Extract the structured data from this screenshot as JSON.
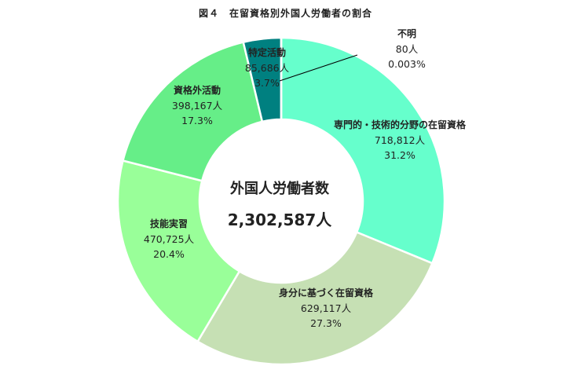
{
  "chart_data": {
    "type": "pie",
    "title": "図４　在留資格別外国人労働者の割合",
    "center": {
      "title": "外国人労働者数",
      "total": "2,302,587人"
    },
    "unit": "人",
    "slices": [
      {
        "label": "専門的・技術的分野の在留資格",
        "value": 718812,
        "value_label": "718,812人",
        "percent": 31.2,
        "percent_label": "31.2%",
        "color": "#66ffcc"
      },
      {
        "label": "身分に基づく在留資格",
        "value": 629117,
        "value_label": "629,117人",
        "percent": 27.3,
        "percent_label": "27.3%",
        "color": "#c6e0b4"
      },
      {
        "label": "技能実習",
        "value": 470725,
        "value_label": "470,725人",
        "percent": 20.4,
        "percent_label": "20.4%",
        "color": "#99ff99"
      },
      {
        "label": "資格外活動",
        "value": 398167,
        "value_label": "398,167人",
        "percent": 17.3,
        "percent_label": "17.3%",
        "color": "#66ee88"
      },
      {
        "label": "特定活動",
        "value": 85686,
        "value_label": "85,686人",
        "percent": 3.7,
        "percent_label": "3.7%",
        "color": "#008080"
      },
      {
        "label": "不明",
        "value": 80,
        "value_label": "80人",
        "percent": 0.003,
        "percent_label": "0.003%",
        "color": "#66ffcc"
      }
    ]
  }
}
